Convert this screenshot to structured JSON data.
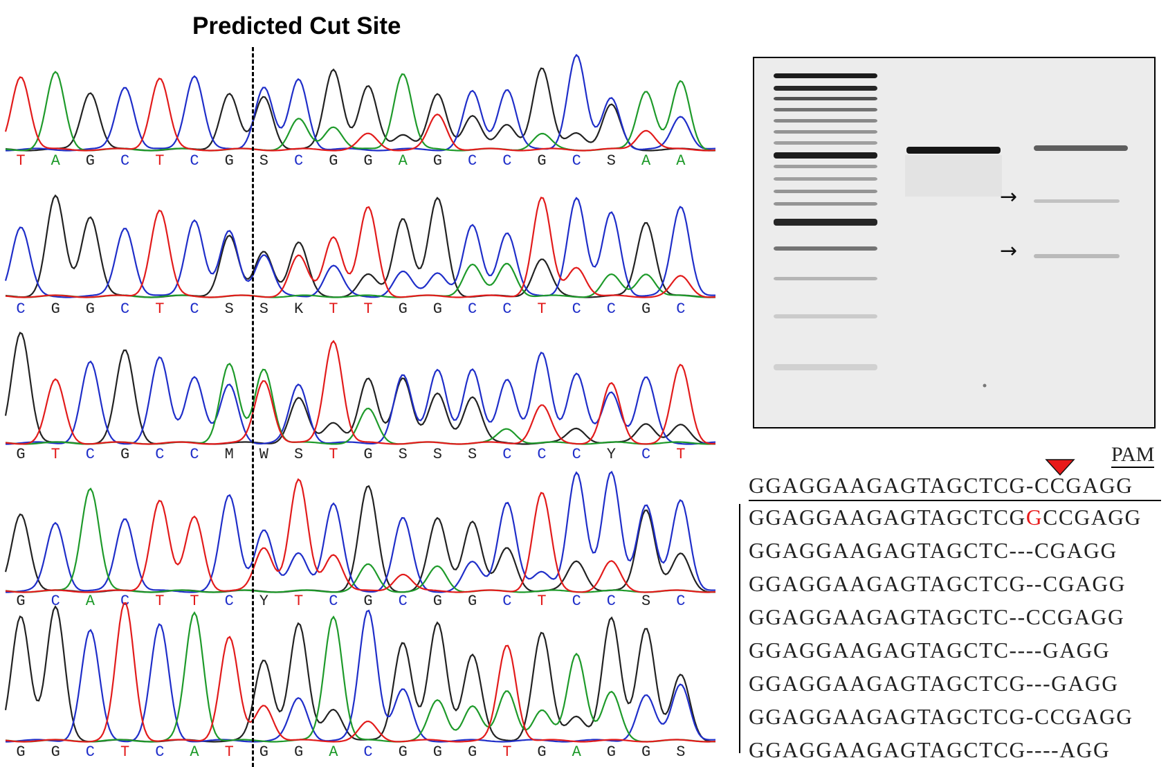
{
  "title": "Predicted Cut Site",
  "chromatogram": {
    "rows": [
      {
        "bases": [
          "T",
          "A",
          "G",
          "C",
          "T",
          "C",
          "G",
          "S",
          "C",
          "G",
          "G",
          "A",
          "G",
          "C",
          "C",
          "G",
          "C",
          "S",
          "A",
          "A"
        ]
      },
      {
        "bases": [
          "C",
          "G",
          "G",
          "C",
          "T",
          "C",
          "S",
          "S",
          "K",
          "T",
          "T",
          "G",
          "G",
          "C",
          "C",
          "T",
          "C",
          "C",
          "G",
          "C"
        ]
      },
      {
        "bases": [
          "G",
          "T",
          "C",
          "G",
          "C",
          "C",
          "M",
          "W",
          "S",
          "T",
          "G",
          "S",
          "S",
          "S",
          "C",
          "C",
          "C",
          "Y",
          "C",
          "T"
        ]
      },
      {
        "bases": [
          "G",
          "C",
          "A",
          "C",
          "T",
          "T",
          "C",
          "Y",
          "T",
          "C",
          "G",
          "C",
          "G",
          "G",
          "C",
          "T",
          "C",
          "C",
          "S",
          "C"
        ]
      },
      {
        "bases": [
          "G",
          "G",
          "C",
          "T",
          "C",
          "A",
          "T",
          "G",
          "G",
          "A",
          "C",
          "G",
          "G",
          "G",
          "T",
          "G",
          "A",
          "G",
          "G",
          "S"
        ]
      }
    ],
    "base_colors": {
      "A": "#1e9a2a",
      "C": "#1f2ec9",
      "G": "#222222",
      "T": "#e21b1b",
      "ambiguous": "#222222"
    }
  },
  "gel": {
    "arrows": [
      "→",
      "→"
    ]
  },
  "alignment": {
    "pam_label": "PAM",
    "reference": "GGAGGAAGAGTAGCTCG-CCGAGG",
    "alleles": [
      {
        "pre": "GGAGGAAGAGTAGCTCG",
        "ins": "G",
        "post": "CCGAGG"
      },
      {
        "pre": "GGAGGAAGAGTAGCTC---CGAGG",
        "ins": "",
        "post": ""
      },
      {
        "pre": "GGAGGAAGAGTAGCTCG--CGAGG",
        "ins": "",
        "post": ""
      },
      {
        "pre": "GGAGGAAGAGTAGCTC--CCGAGG",
        "ins": "",
        "post": ""
      },
      {
        "pre": "GGAGGAAGAGTAGCTC----GAGG",
        "ins": "",
        "post": ""
      },
      {
        "pre": "GGAGGAAGAGTAGCTCG---GAGG",
        "ins": "",
        "post": ""
      },
      {
        "pre": "GGAGGAAGAGTAGCTCG-CCGAGG",
        "ins": "",
        "post": ""
      },
      {
        "pre": "GGAGGAAGAGTAGCTCG----AGG",
        "ins": "",
        "post": ""
      }
    ],
    "marker_color": "#e81919"
  }
}
